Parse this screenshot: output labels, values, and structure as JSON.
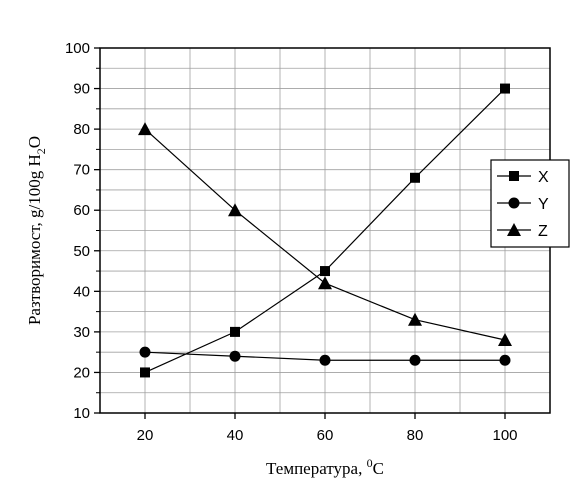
{
  "chart_data": {
    "type": "line",
    "xlabel": "Температура, ",
    "xlabel_sup": "0",
    "xlabel_unit": "C",
    "ylabel_main": "Разтворимост, g/100g  H",
    "ylabel_sub": "2",
    "ylabel_tail": "O",
    "xlim": [
      10,
      110
    ],
    "ylim": [
      10,
      100
    ],
    "x_ticks": [
      20,
      40,
      60,
      80,
      100
    ],
    "y_ticks": [
      10,
      20,
      30,
      40,
      50,
      60,
      70,
      80,
      90,
      100
    ],
    "grid": true,
    "legend_position": "right",
    "x": [
      20,
      40,
      60,
      80,
      100
    ],
    "series": [
      {
        "name": "X",
        "marker": "square",
        "values": [
          20,
          30,
          45,
          68,
          90
        ]
      },
      {
        "name": "Y",
        "marker": "circle",
        "values": [
          25,
          24,
          23,
          23,
          23
        ]
      },
      {
        "name": "Z",
        "marker": "triangle",
        "values": [
          80,
          60,
          42,
          33,
          28
        ]
      }
    ],
    "colors": {
      "line": "#000000",
      "grid": "#a0a0a0",
      "background": "#ffffff"
    }
  }
}
